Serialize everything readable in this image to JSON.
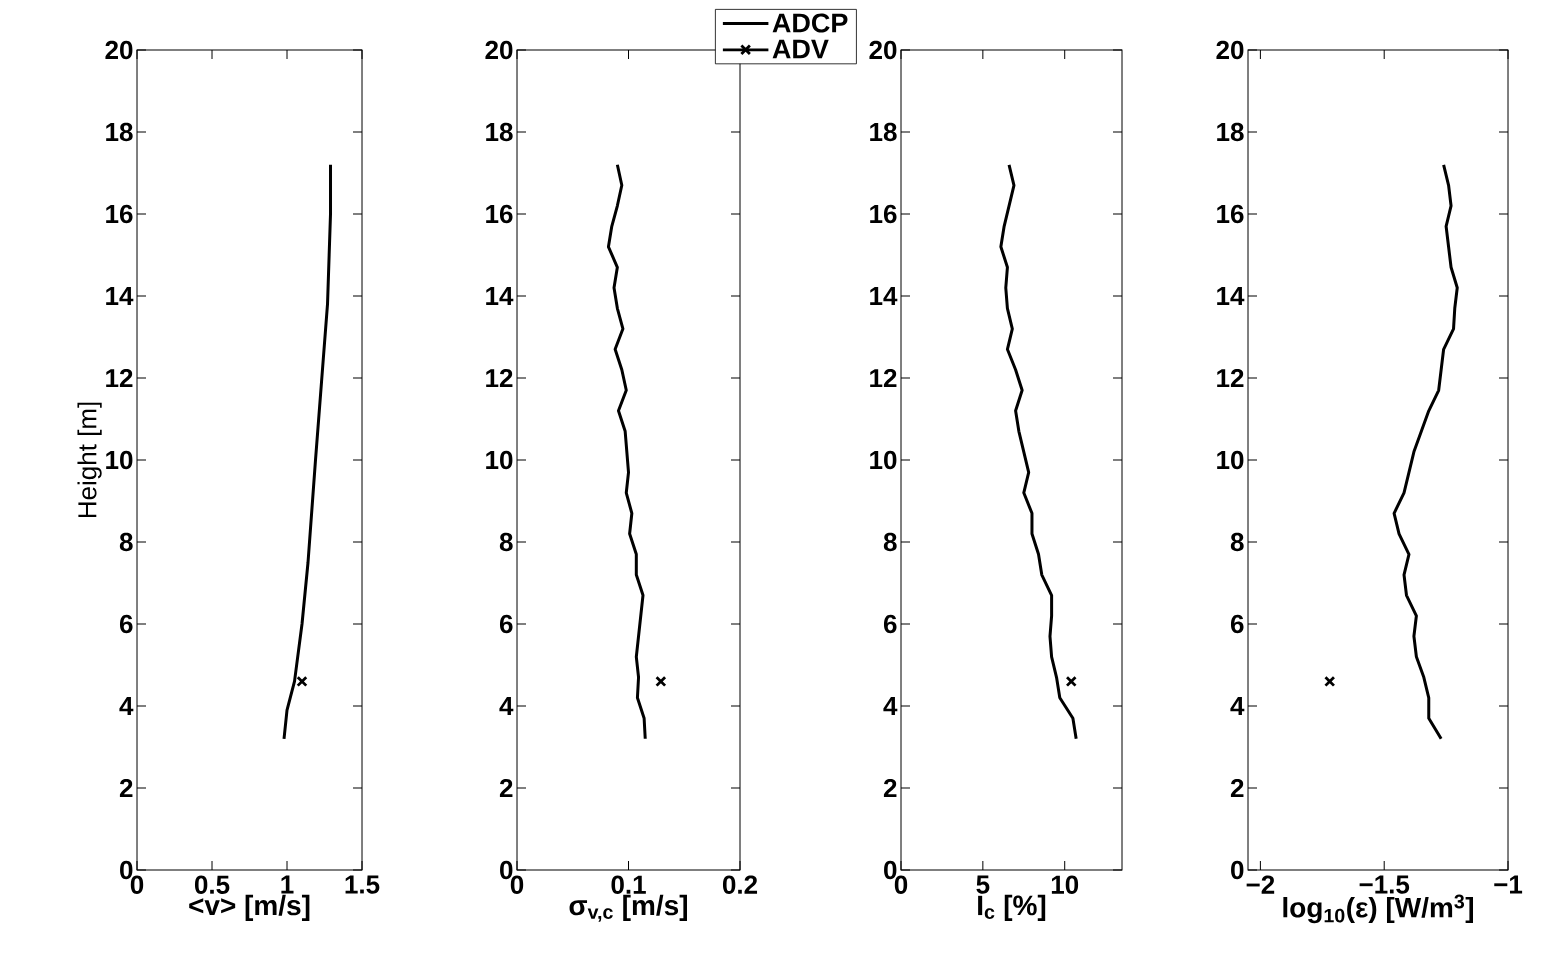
{
  "chart_data": [
    {
      "type": "line",
      "xlabel": "<v> [m/s]",
      "ylabel": "Height [m]",
      "xlim": [
        0,
        1.5
      ],
      "xticks": [
        0,
        0.5,
        1,
        1.5
      ],
      "ylim": [
        0,
        20
      ],
      "yticks": [
        0,
        2,
        4,
        6,
        8,
        10,
        12,
        14,
        16,
        18,
        20
      ],
      "series": [
        {
          "type": "line",
          "color": "#000000",
          "marker": "none",
          "line_style": "solid",
          "x": [
            1.29,
            1.29,
            1.27,
            1.23,
            1.19,
            1.14,
            1.1,
            1.05,
            1.0,
            0.98
          ],
          "values": [
            17.2,
            16.0,
            13.8,
            11.9,
            10.0,
            7.5,
            6.0,
            4.6,
            3.9,
            3.2
          ]
        },
        {
          "type": "scatter",
          "color": "#000000",
          "marker": "cross",
          "x": [
            1.1
          ],
          "values": [
            4.6
          ]
        }
      ]
    },
    {
      "type": "line",
      "xlabel": "σ$_{v,c}$ [m/s]",
      "xlim": [
        0,
        0.2
      ],
      "xticks": [
        0,
        0.1,
        0.2
      ],
      "ylim": [
        0,
        20
      ],
      "yticks": [
        0,
        2,
        4,
        6,
        8,
        10,
        12,
        14,
        16,
        18,
        20
      ],
      "series": [
        {
          "type": "line",
          "color": "#000000",
          "marker": "none",
          "line_style": "solid",
          "x": [
            0.09,
            0.094,
            0.09,
            0.085,
            0.082,
            0.09,
            0.087,
            0.09,
            0.095,
            0.088,
            0.094,
            0.098,
            0.091,
            0.097,
            0.1,
            0.098,
            0.103,
            0.101,
            0.107,
            0.107,
            0.113,
            0.107,
            0.109,
            0.108,
            0.114,
            0.115
          ],
          "values": [
            17.2,
            16.7,
            16.2,
            15.7,
            15.2,
            14.7,
            14.2,
            13.7,
            13.2,
            12.7,
            12.2,
            11.7,
            11.2,
            10.7,
            9.7,
            9.2,
            8.7,
            8.2,
            7.7,
            7.2,
            6.7,
            5.2,
            4.7,
            4.2,
            3.7,
            3.2
          ]
        },
        {
          "type": "scatter",
          "color": "#000000",
          "marker": "cross",
          "x": [
            0.129
          ],
          "values": [
            4.6
          ]
        }
      ]
    },
    {
      "type": "line",
      "xlabel": "I$_{c}$ [%]",
      "xlim": [
        0,
        13.5
      ],
      "xticks": [
        0,
        5,
        10
      ],
      "ylim": [
        0,
        20
      ],
      "yticks": [
        0,
        2,
        4,
        6,
        8,
        10,
        12,
        14,
        16,
        18,
        20
      ],
      "legend": "top",
      "series": [
        {
          "type": "line",
          "name": "ADCP",
          "color": "#000000",
          "marker": "none",
          "line_style": "solid",
          "x": [
            6.6,
            6.9,
            6.6,
            6.3,
            6.1,
            6.5,
            6.4,
            6.5,
            6.8,
            6.5,
            7.0,
            7.4,
            7.0,
            7.2,
            7.8,
            7.5,
            8.0,
            8.0,
            8.4,
            8.6,
            9.2,
            9.2,
            9.1,
            9.2,
            9.5,
            9.7,
            10.5,
            10.7
          ],
          "values": [
            17.2,
            16.7,
            16.2,
            15.7,
            15.2,
            14.7,
            14.2,
            13.7,
            13.2,
            12.7,
            12.2,
            11.7,
            11.2,
            10.7,
            9.7,
            9.2,
            8.7,
            8.2,
            7.7,
            7.2,
            6.7,
            6.2,
            5.7,
            5.2,
            4.7,
            4.2,
            3.7,
            3.2
          ]
        },
        {
          "type": "scatter",
          "name": "ADV",
          "color": "#000000",
          "marker": "cross",
          "x": [
            10.4
          ],
          "values": [
            4.6
          ]
        }
      ]
    },
    {
      "type": "line",
      "xlabel": "log$_{10}$(ε) [W/m$^{3}$]",
      "xlim": [
        -2.05,
        -1
      ],
      "xticks": [
        {
          "value": -2,
          "label": "−2"
        },
        {
          "value": -1.5,
          "label": "−1.5"
        },
        {
          "value": -1,
          "label": "−1"
        }
      ],
      "ylim": [
        0,
        20
      ],
      "yticks": [
        0,
        2,
        4,
        6,
        8,
        10,
        12,
        14,
        16,
        18,
        20
      ],
      "series": [
        {
          "type": "line",
          "color": "#000000",
          "marker": "none",
          "line_style": "solid",
          "x": [
            -1.26,
            -1.24,
            -1.23,
            -1.25,
            -1.24,
            -1.23,
            -1.205,
            -1.215,
            -1.22,
            -1.26,
            -1.27,
            -1.28,
            -1.32,
            -1.35,
            -1.38,
            -1.4,
            -1.42,
            -1.46,
            -1.44,
            -1.4,
            -1.42,
            -1.41,
            -1.37,
            -1.38,
            -1.37,
            -1.34,
            -1.32,
            -1.32,
            -1.27
          ],
          "values": [
            17.2,
            16.7,
            16.2,
            15.7,
            15.2,
            14.7,
            14.2,
            13.7,
            13.2,
            12.7,
            12.2,
            11.7,
            11.2,
            10.7,
            10.2,
            9.7,
            9.2,
            8.7,
            8.2,
            7.7,
            7.2,
            6.7,
            6.2,
            5.7,
            5.2,
            4.7,
            4.2,
            3.7,
            3.2
          ]
        },
        {
          "type": "scatter",
          "color": "#000000",
          "marker": "cross",
          "x": [
            -1.72
          ],
          "values": [
            4.6
          ]
        }
      ]
    }
  ]
}
